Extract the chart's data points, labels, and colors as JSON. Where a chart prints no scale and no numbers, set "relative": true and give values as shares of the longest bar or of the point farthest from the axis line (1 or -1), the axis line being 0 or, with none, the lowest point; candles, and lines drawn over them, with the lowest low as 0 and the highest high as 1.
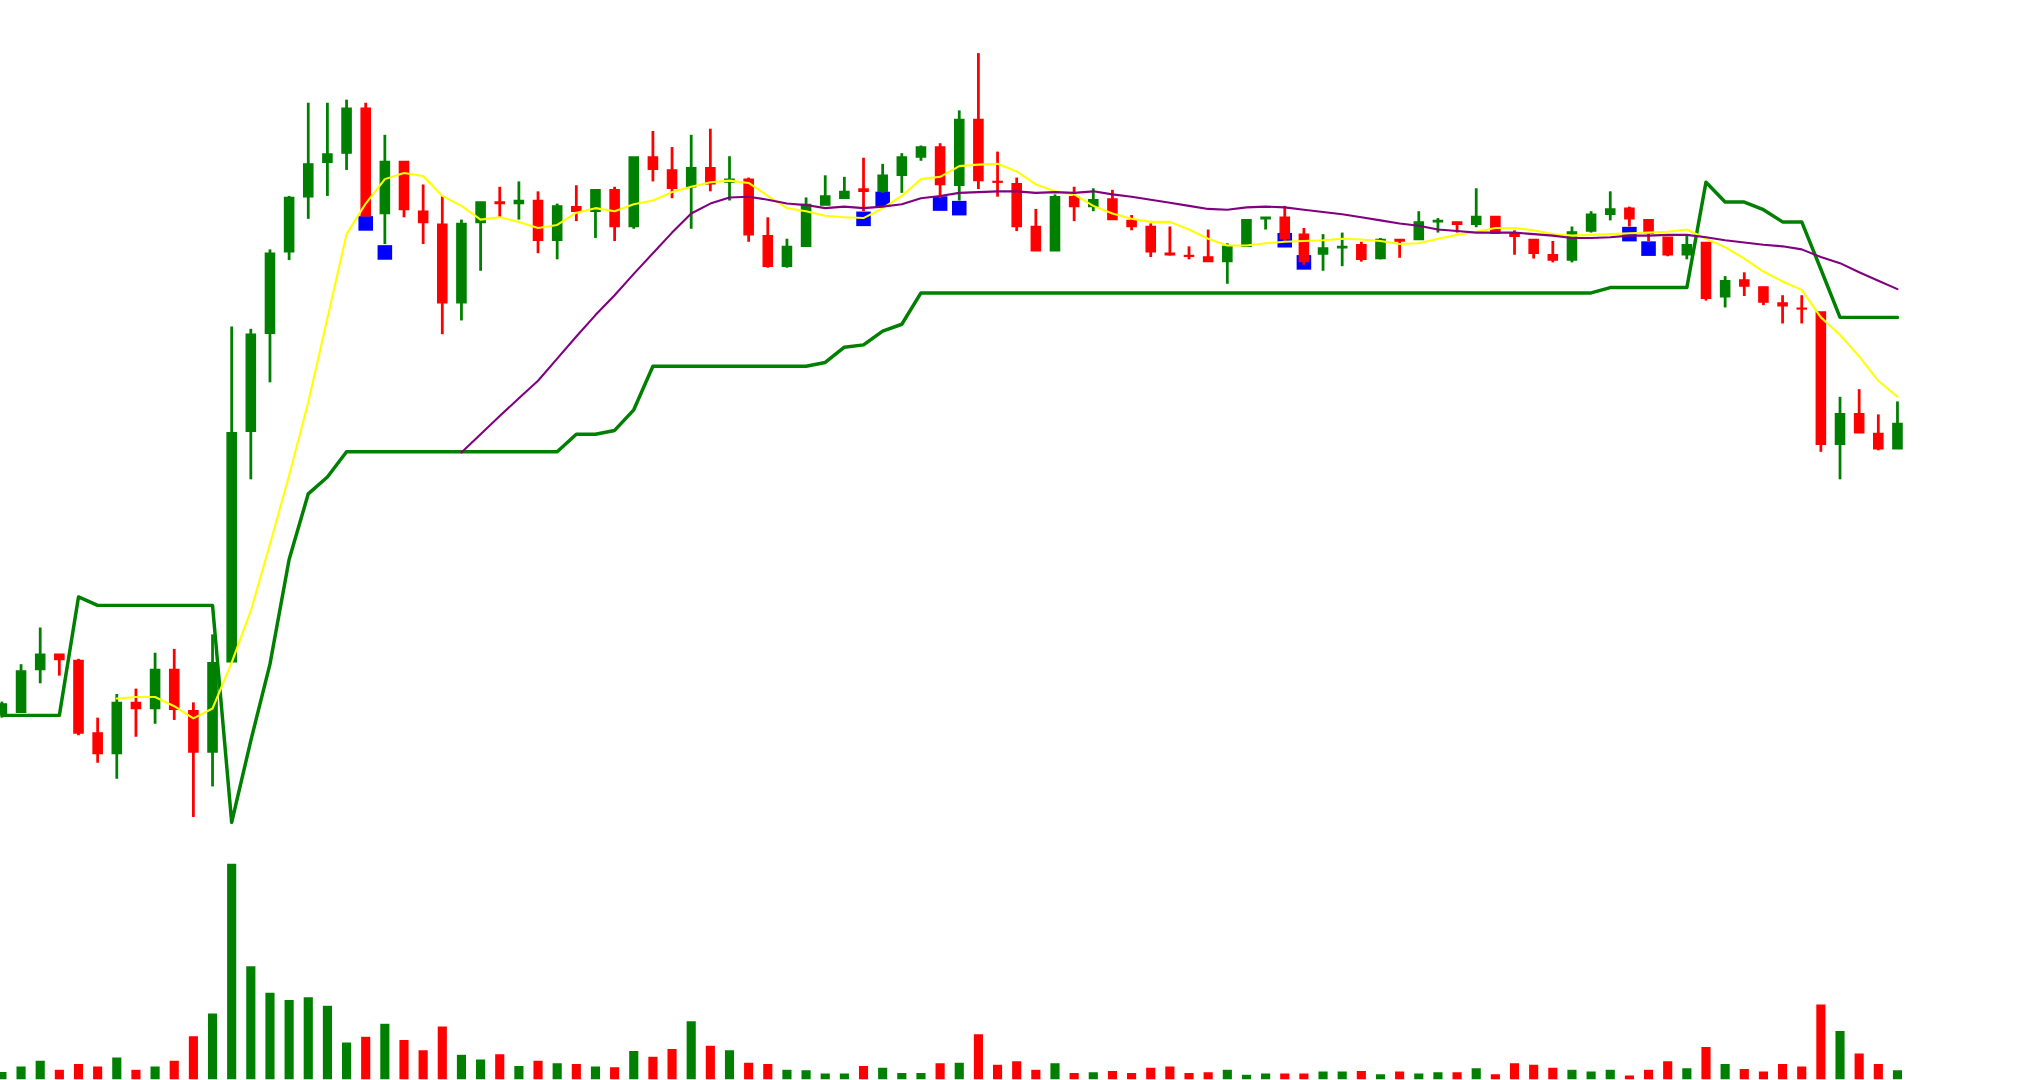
{
  "chart_data": [
    {
      "type": "candlestick",
      "relative": true,
      "categories": [
        null,
        null,
        null,
        null,
        null,
        null,
        null,
        null,
        null,
        null,
        null,
        null,
        null,
        null,
        null,
        null,
        null,
        null,
        null,
        null,
        null,
        null,
        null,
        null,
        null,
        null,
        null,
        null,
        null,
        null,
        null,
        null,
        null,
        null,
        null,
        null,
        null,
        null,
        null,
        null,
        null,
        null,
        null,
        null,
        null,
        null,
        null,
        null,
        null,
        null,
        null,
        null,
        null,
        null,
        null,
        null,
        null,
        null,
        null,
        null,
        null,
        null,
        null,
        null,
        null,
        null,
        null,
        null,
        null,
        null,
        null,
        null,
        null,
        null,
        null,
        null,
        null,
        null,
        null,
        null,
        null,
        null,
        null,
        null,
        null,
        null,
        null,
        null,
        null,
        null,
        null,
        null,
        null,
        null,
        null,
        null,
        null,
        null,
        null,
        null
      ],
      "ohlc": [
        [
          0.135,
          0.151,
          0.13,
          0.148
        ],
        [
          0.137,
          0.2,
          0.137,
          0.191
        ],
        [
          0.193,
          0.248,
          0.175,
          0.213
        ],
        [
          0.213,
          0.213,
          0.185,
          0.206
        ],
        [
          0.205,
          0.207,
          0.107,
          0.11
        ],
        [
          0.11,
          0.13,
          0.071,
          0.083
        ],
        [
          0.083,
          0.161,
          0.05,
          0.15
        ],
        [
          0.15,
          0.168,
          0.105,
          0.142
        ],
        [
          0.142,
          0.215,
          0.122,
          0.193
        ],
        [
          0.193,
          0.22,
          0.127,
          0.141
        ],
        [
          0.139,
          0.15,
          0,
          0.085
        ],
        [
          0.085,
          0.239,
          0.04,
          0.202
        ],
        [
          0.203,
          0.642,
          0.203,
          0.503
        ],
        [
          0.505,
          0.639,
          0.442,
          0.632
        ],
        [
          0.633,
          0.743,
          0.569,
          0.738
        ],
        [
          0.74,
          0.813,
          0.729,
          0.811
        ],
        [
          0.812,
          0.935,
          0.783,
          0.855
        ],
        [
          0.857,
          0.935,
          0.813,
          0.868
        ],
        [
          0.869,
          0.939,
          0.847,
          0.928
        ],
        [
          0.928,
          0.935,
          0.787,
          0.787
        ],
        [
          0.79,
          0.893,
          0.75,
          0.858
        ],
        [
          0.858,
          0.858,
          0.785,
          0.795
        ],
        [
          0.793,
          0.828,
          0.75,
          0.778
        ],
        [
          0.776,
          0.813,
          0.632,
          0.673
        ],
        [
          0.673,
          0.782,
          0.65,
          0.777
        ],
        [
          0.778,
          0.805,
          0.715,
          0.805
        ],
        [
          0.805,
          0.825,
          0.785,
          0.803
        ],
        [
          0.803,
          0.832,
          0.782,
          0.807
        ],
        [
          0.807,
          0.819,
          0.738,
          0.755
        ],
        [
          0.755,
          0.803,
          0.73,
          0.8
        ],
        [
          0.799,
          0.827,
          0.78,
          0.793
        ],
        [
          0.793,
          0.822,
          0.758,
          0.821
        ],
        [
          0.821,
          0.825,
          0.754,
          0.773
        ],
        [
          0.773,
          0.864,
          0.77,
          0.864
        ],
        [
          0.864,
          0.898,
          0.832,
          0.848
        ],
        [
          0.847,
          0.877,
          0.81,
          0.823
        ],
        [
          0.825,
          0.893,
          0.77,
          0.85
        ],
        [
          0.85,
          0.901,
          0.819,
          0.829
        ],
        [
          0.831,
          0.865,
          0.807,
          0.835
        ],
        [
          0.835,
          0.837,
          0.753,
          0.762
        ],
        [
          0.761,
          0.785,
          0.719,
          0.721
        ],
        [
          0.721,
          0.757,
          0.719,
          0.747
        ],
        [
          0.747,
          0.811,
          0.747,
          0.802
        ],
        [
          0.801,
          0.84,
          0.801,
          0.813
        ],
        [
          0.81,
          0.838,
          0.81,
          0.819
        ],
        [
          0.822,
          0.863,
          0.793,
          0.819
        ],
        [
          0.819,
          0.855,
          0.817,
          0.84
        ],
        [
          0.84,
          0.869,
          0.817,
          0.864
        ],
        [
          0.864,
          0.879,
          0.859,
          0.877
        ],
        [
          0.877,
          0.882,
          0.81,
          0.828
        ],
        [
          0.827,
          0.925,
          0.807,
          0.913
        ],
        [
          0.913,
          1,
          0.822,
          0.833
        ],
        [
          0.832,
          0.871,
          0.812,
          0.831
        ],
        [
          0.829,
          0.837,
          0.767,
          0.773
        ],
        [
          0.773,
          0.796,
          0.741,
          0.741
        ],
        [
          0.741,
          0.815,
          0.741,
          0.812
        ],
        [
          0.812,
          0.825,
          0.78,
          0.799
        ],
        [
          0.799,
          0.823,
          0.793,
          0.808
        ],
        [
          0.809,
          0.821,
          0.782,
          0.782
        ],
        [
          0.781,
          0.788,
          0.768,
          0.773
        ],
        [
          0.773,
          0.777,
          0.733,
          0.74
        ],
        [
          0.738,
          0.773,
          0.735,
          0.736
        ],
        [
          0.735,
          0.747,
          0.73,
          0.734
        ],
        [
          0.733,
          0.769,
          0.727,
          0.727
        ],
        [
          0.727,
          0.751,
          0.698,
          0.747
        ],
        [
          0.747,
          0.782,
          0.747,
          0.782
        ],
        [
          0.783,
          0.785,
          0.769,
          0.785
        ],
        [
          0.785,
          0.8,
          0.753,
          0.757
        ],
        [
          0.763,
          0.771,
          0.723,
          0.727
        ],
        [
          0.737,
          0.763,
          0.715,
          0.745
        ],
        [
          0.745,
          0.765,
          0.721,
          0.747
        ],
        [
          0.749,
          0.753,
          0.727,
          0.73
        ],
        [
          0.731,
          0.758,
          0.73,
          0.756
        ],
        [
          0.756,
          0.756,
          0.732,
          0.754
        ],
        [
          0.756,
          0.793,
          0.756,
          0.779
        ],
        [
          0.779,
          0.784,
          0.765,
          0.781
        ],
        [
          0.779,
          0.779,
          0.765,
          0.776
        ],
        [
          0.776,
          0.823,
          0.772,
          0.786
        ],
        [
          0.786,
          0.786,
          0.764,
          0.764
        ],
        [
          0.764,
          0.768,
          0.736,
          0.76
        ],
        [
          0.756,
          0.756,
          0.731,
          0.738
        ],
        [
          0.736,
          0.754,
          0.726,
          0.729
        ],
        [
          0.729,
          0.773,
          0.726,
          0.766
        ],
        [
          0.767,
          0.793,
          0.765,
          0.789
        ],
        [
          0.789,
          0.819,
          0.781,
          0.796
        ],
        [
          0.797,
          0.799,
          0.773,
          0.783
        ],
        [
          0.782,
          0.782,
          0.754,
          0.764
        ],
        [
          0.759,
          0.759,
          0.734,
          0.736
        ],
        [
          0.736,
          0.761,
          0.73,
          0.749
        ],
        [
          0.752,
          0.752,
          0.676,
          0.679
        ],
        [
          0.681,
          0.708,
          0.667,
          0.702
        ],
        [
          0.703,
          0.713,
          0.682,
          0.695
        ],
        [
          0.694,
          0.694,
          0.67,
          0.674
        ],
        [
          0.673,
          0.683,
          0.646,
          0.669
        ],
        [
          0.666,
          0.683,
          0.646,
          0.665
        ],
        [
          0.661,
          0.661,
          0.478,
          0.488
        ],
        [
          0.488,
          0.55,
          0.442,
          0.528
        ],
        [
          0.528,
          0.56,
          0.503,
          0.503
        ],
        [
          0.502,
          0.527,
          0.48,
          0.482
        ],
        [
          0.482,
          0.544,
          0.482,
          0.515
        ]
      ],
      "colors": [
        "#008000",
        "#008000",
        "#008000",
        "#ff0000",
        "#ff0000",
        "#ff0000",
        "#008000",
        "#ff0000",
        "#008000",
        "#ff0000",
        "#ff0000",
        "#008000",
        "#008000",
        "#008000",
        "#008000",
        "#008000",
        "#008000",
        "#008000",
        "#008000",
        "#ff0000",
        "#008000",
        "#ff0000",
        "#ff0000",
        "#ff0000",
        "#008000",
        "#008000",
        "#ff0000",
        "#008000",
        "#ff0000",
        "#008000",
        "#ff0000",
        "#008000",
        "#ff0000",
        "#008000",
        "#ff0000",
        "#ff0000",
        "#008000",
        "#ff0000",
        "#008000",
        "#ff0000",
        "#ff0000",
        "#008000",
        "#008000",
        "#008000",
        "#008000",
        "#ff0000",
        "#008000",
        "#008000",
        "#008000",
        "#ff0000",
        "#008000",
        "#ff0000",
        "#ff0000",
        "#ff0000",
        "#ff0000",
        "#008000",
        "#ff0000",
        "#008000",
        "#ff0000",
        "#ff0000",
        "#ff0000",
        "#ff0000",
        "#ff0000",
        "#ff0000",
        "#008000",
        "#008000",
        "#008000",
        "#ff0000",
        "#ff0000",
        "#008000",
        "#008000",
        "#ff0000",
        "#008000",
        "#ff0000",
        "#008000",
        "#008000",
        "#ff0000",
        "#008000",
        "#ff0000",
        "#ff0000",
        "#ff0000",
        "#ff0000",
        "#008000",
        "#008000",
        "#008000",
        "#ff0000",
        "#ff0000",
        "#ff0000",
        "#008000",
        "#ff0000",
        "#008000",
        "#ff0000",
        "#ff0000",
        "#ff0000",
        "#ff0000",
        "#ff0000",
        "#008000",
        "#ff0000",
        "#ff0000",
        "#008000"
      ],
      "series": [
        {
          "type": "line",
          "color": "#008000",
          "values": [
            0.133,
            0.133,
            0.133,
            0.133,
            0.288,
            0.277,
            0.277,
            0.277,
            0.277,
            0.277,
            0.277,
            0.277,
            -0.007,
            0.1,
            0.2,
            0.337,
            0.423,
            0.445,
            0.478,
            0.478,
            0.478,
            0.478,
            0.478,
            0.478,
            0.478,
            0.478,
            0.478,
            0.478,
            0.478,
            0.478,
            0.501,
            0.501,
            0.506,
            0.533,
            0.59,
            0.59,
            0.59,
            0.59,
            0.59,
            0.59,
            0.59,
            0.59,
            0.59,
            0.595,
            0.615,
            0.618,
            0.636,
            0.645,
            0.686,
            0.686,
            0.686,
            0.686,
            0.686,
            0.686,
            0.686,
            0.686,
            0.686,
            0.686,
            0.686,
            0.686,
            0.686,
            0.686,
            0.686,
            0.686,
            0.686,
            0.686,
            0.686,
            0.686,
            0.686,
            0.686,
            0.686,
            0.686,
            0.686,
            0.686,
            0.686,
            0.686,
            0.686,
            0.686,
            0.686,
            0.686,
            0.686,
            0.686,
            0.686,
            0.686,
            0.693,
            0.693,
            0.693,
            0.693,
            0.693,
            0.831,
            0.805,
            0.805,
            0.795,
            0.779,
            0.779,
            0.717,
            0.654,
            0.654,
            0.654,
            0.654
          ]
        },
        {
          "type": "line",
          "color": "#ffff00",
          "values": [
            null,
            null,
            null,
            null,
            null,
            null,
            0.155,
            0.157,
            0.157,
            0.145,
            0.129,
            0.142,
            0.202,
            0.27,
            0.357,
            0.447,
            0.543,
            0.653,
            0.763,
            0.803,
            0.835,
            0.843,
            0.839,
            0.813,
            0.8,
            0.782,
            0.785,
            0.779,
            0.771,
            0.775,
            0.791,
            0.797,
            0.793,
            0.802,
            0.807,
            0.818,
            0.825,
            0.831,
            0.833,
            0.83,
            0.813,
            0.797,
            0.793,
            0.787,
            0.785,
            0.784,
            0.797,
            0.813,
            0.835,
            0.838,
            0.852,
            0.854,
            0.855,
            0.845,
            0.828,
            0.819,
            0.815,
            0.8,
            0.79,
            0.783,
            0.779,
            0.779,
            0.769,
            0.757,
            0.748,
            0.748,
            0.751,
            0.753,
            0.754,
            0.755,
            0.757,
            0.756,
            0.754,
            0.75,
            0.751,
            0.757,
            0.762,
            0.766,
            0.771,
            0.771,
            0.768,
            0.763,
            0.761,
            0.762,
            0.763,
            0.764,
            0.765,
            0.766,
            0.769,
            0.757,
            0.746,
            0.731,
            0.714,
            0.701,
            0.69,
            0.654,
            0.631,
            0.603,
            0.571,
            0.55
          ]
        },
        {
          "type": "line",
          "color": "#800080",
          "values": [
            null,
            null,
            null,
            null,
            null,
            null,
            null,
            null,
            null,
            null,
            null,
            null,
            null,
            null,
            null,
            null,
            null,
            null,
            null,
            null,
            null,
            null,
            null,
            null,
            0.477,
            0.501,
            0.525,
            0.548,
            0.571,
            0.6,
            0.629,
            0.657,
            0.683,
            0.711,
            0.738,
            0.765,
            0.79,
            0.803,
            0.811,
            0.812,
            0.808,
            0.803,
            0.801,
            0.797,
            0.799,
            0.797,
            0.799,
            0.802,
            0.81,
            0.813,
            0.817,
            0.818,
            0.819,
            0.819,
            0.817,
            0.818,
            0.817,
            0.819,
            0.815,
            0.812,
            0.808,
            0.804,
            0.8,
            0.796,
            0.795,
            0.798,
            0.799,
            0.798,
            0.795,
            0.792,
            0.789,
            0.785,
            0.781,
            0.777,
            0.774,
            0.769,
            0.767,
            0.765,
            0.765,
            0.765,
            0.763,
            0.761,
            0.758,
            0.758,
            0.759,
            0.761,
            0.761,
            0.762,
            0.762,
            0.759,
            0.755,
            0.752,
            0.749,
            0.747,
            0.743,
            0.733,
            0.725,
            0.713,
            0.702,
            0.691
          ]
        },
        {
          "type": "scatter",
          "color": "#0000ff",
          "marker": "square",
          "values": [
            null,
            null,
            null,
            null,
            null,
            null,
            null,
            null,
            null,
            null,
            null,
            null,
            null,
            null,
            null,
            null,
            null,
            null,
            null,
            0.777,
            0.739,
            null,
            null,
            null,
            null,
            null,
            null,
            null,
            null,
            null,
            null,
            null,
            null,
            null,
            null,
            null,
            null,
            null,
            null,
            null,
            null,
            null,
            null,
            null,
            null,
            0.783,
            0.809,
            null,
            null,
            0.803,
            0.797,
            null,
            null,
            null,
            null,
            null,
            null,
            null,
            null,
            null,
            null,
            null,
            null,
            null,
            null,
            null,
            null,
            0.755,
            0.726,
            null,
            null,
            null,
            null,
            null,
            null,
            null,
            null,
            null,
            null,
            null,
            null,
            null,
            null,
            null,
            null,
            0.763,
            0.744,
            null,
            null,
            null,
            null,
            null,
            null,
            null,
            null,
            null,
            null,
            null,
            null,
            null
          ]
        }
      ]
    },
    {
      "type": "bar",
      "relative": true,
      "categories": [
        null,
        null,
        null,
        null,
        null,
        null,
        null,
        null,
        null,
        null,
        null,
        null,
        null,
        null,
        null,
        null,
        null,
        null,
        null,
        null,
        null,
        null,
        null,
        null,
        null,
        null,
        null,
        null,
        null,
        null,
        null,
        null,
        null,
        null,
        null,
        null,
        null,
        null,
        null,
        null,
        null,
        null,
        null,
        null,
        null,
        null,
        null,
        null,
        null,
        null,
        null,
        null,
        null,
        null,
        null,
        null,
        null,
        null,
        null,
        null,
        null,
        null,
        null,
        null,
        null,
        null,
        null,
        null,
        null,
        null,
        null,
        null,
        null,
        null,
        null,
        null,
        null,
        null,
        null,
        null,
        null,
        null,
        null,
        null,
        null,
        null,
        null,
        null,
        null,
        null,
        null,
        null,
        null,
        null,
        null,
        null,
        null,
        null,
        null,
        null
      ],
      "values": [
        0.04,
        0.065,
        0.092,
        0.05,
        0.077,
        0.065,
        0.107,
        0.05,
        0.065,
        0.092,
        0.205,
        0.31,
        1,
        0.527,
        0.405,
        0.372,
        0.384,
        0.345,
        0.176,
        0.202,
        0.262,
        0.188,
        0.14,
        0.25,
        0.119,
        0.098,
        0.122,
        0.068,
        0.092,
        0.08,
        0.077,
        0.065,
        0.062,
        0.137,
        0.11,
        0.146,
        0.274,
        0.161,
        0.14,
        0.083,
        0.077,
        0.05,
        0.048,
        0.033,
        0.033,
        0.068,
        0.06,
        0.036,
        0.036,
        0.08,
        0.083,
        0.214,
        0.074,
        0.09,
        0.05,
        0.08,
        0.036,
        0.039,
        0.045,
        0.036,
        0.06,
        0.065,
        0.036,
        0.039,
        0.05,
        0.027,
        0.033,
        0.033,
        0.033,
        0.042,
        0.042,
        0.045,
        0.03,
        0.042,
        0.033,
        0.039,
        0.039,
        0.057,
        0.03,
        0.08,
        0.074,
        0.06,
        0.05,
        0.042,
        0.05,
        0.024,
        0.05,
        0.09,
        0.057,
        0.155,
        0.077,
        0.054,
        0.042,
        0.077,
        0.065,
        0.351,
        0.229,
        0.125,
        0.077,
        0.048
      ],
      "colors": [
        "#008000",
        "#008000",
        "#008000",
        "#ff0000",
        "#ff0000",
        "#ff0000",
        "#008000",
        "#ff0000",
        "#008000",
        "#ff0000",
        "#ff0000",
        "#008000",
        "#008000",
        "#008000",
        "#008000",
        "#008000",
        "#008000",
        "#008000",
        "#008000",
        "#ff0000",
        "#008000",
        "#ff0000",
        "#ff0000",
        "#ff0000",
        "#008000",
        "#008000",
        "#ff0000",
        "#008000",
        "#ff0000",
        "#008000",
        "#ff0000",
        "#008000",
        "#ff0000",
        "#008000",
        "#ff0000",
        "#ff0000",
        "#008000",
        "#ff0000",
        "#008000",
        "#ff0000",
        "#ff0000",
        "#008000",
        "#008000",
        "#008000",
        "#008000",
        "#ff0000",
        "#008000",
        "#008000",
        "#008000",
        "#ff0000",
        "#008000",
        "#ff0000",
        "#ff0000",
        "#ff0000",
        "#ff0000",
        "#008000",
        "#ff0000",
        "#008000",
        "#ff0000",
        "#ff0000",
        "#ff0000",
        "#ff0000",
        "#ff0000",
        "#ff0000",
        "#008000",
        "#008000",
        "#008000",
        "#ff0000",
        "#ff0000",
        "#008000",
        "#008000",
        "#ff0000",
        "#008000",
        "#ff0000",
        "#008000",
        "#008000",
        "#ff0000",
        "#008000",
        "#ff0000",
        "#ff0000",
        "#ff0000",
        "#ff0000",
        "#008000",
        "#008000",
        "#008000",
        "#ff0000",
        "#ff0000",
        "#ff0000",
        "#008000",
        "#ff0000",
        "#008000",
        "#ff0000",
        "#ff0000",
        "#ff0000",
        "#ff0000",
        "#ff0000",
        "#008000",
        "#ff0000",
        "#ff0000",
        "#008000"
      ]
    }
  ]
}
